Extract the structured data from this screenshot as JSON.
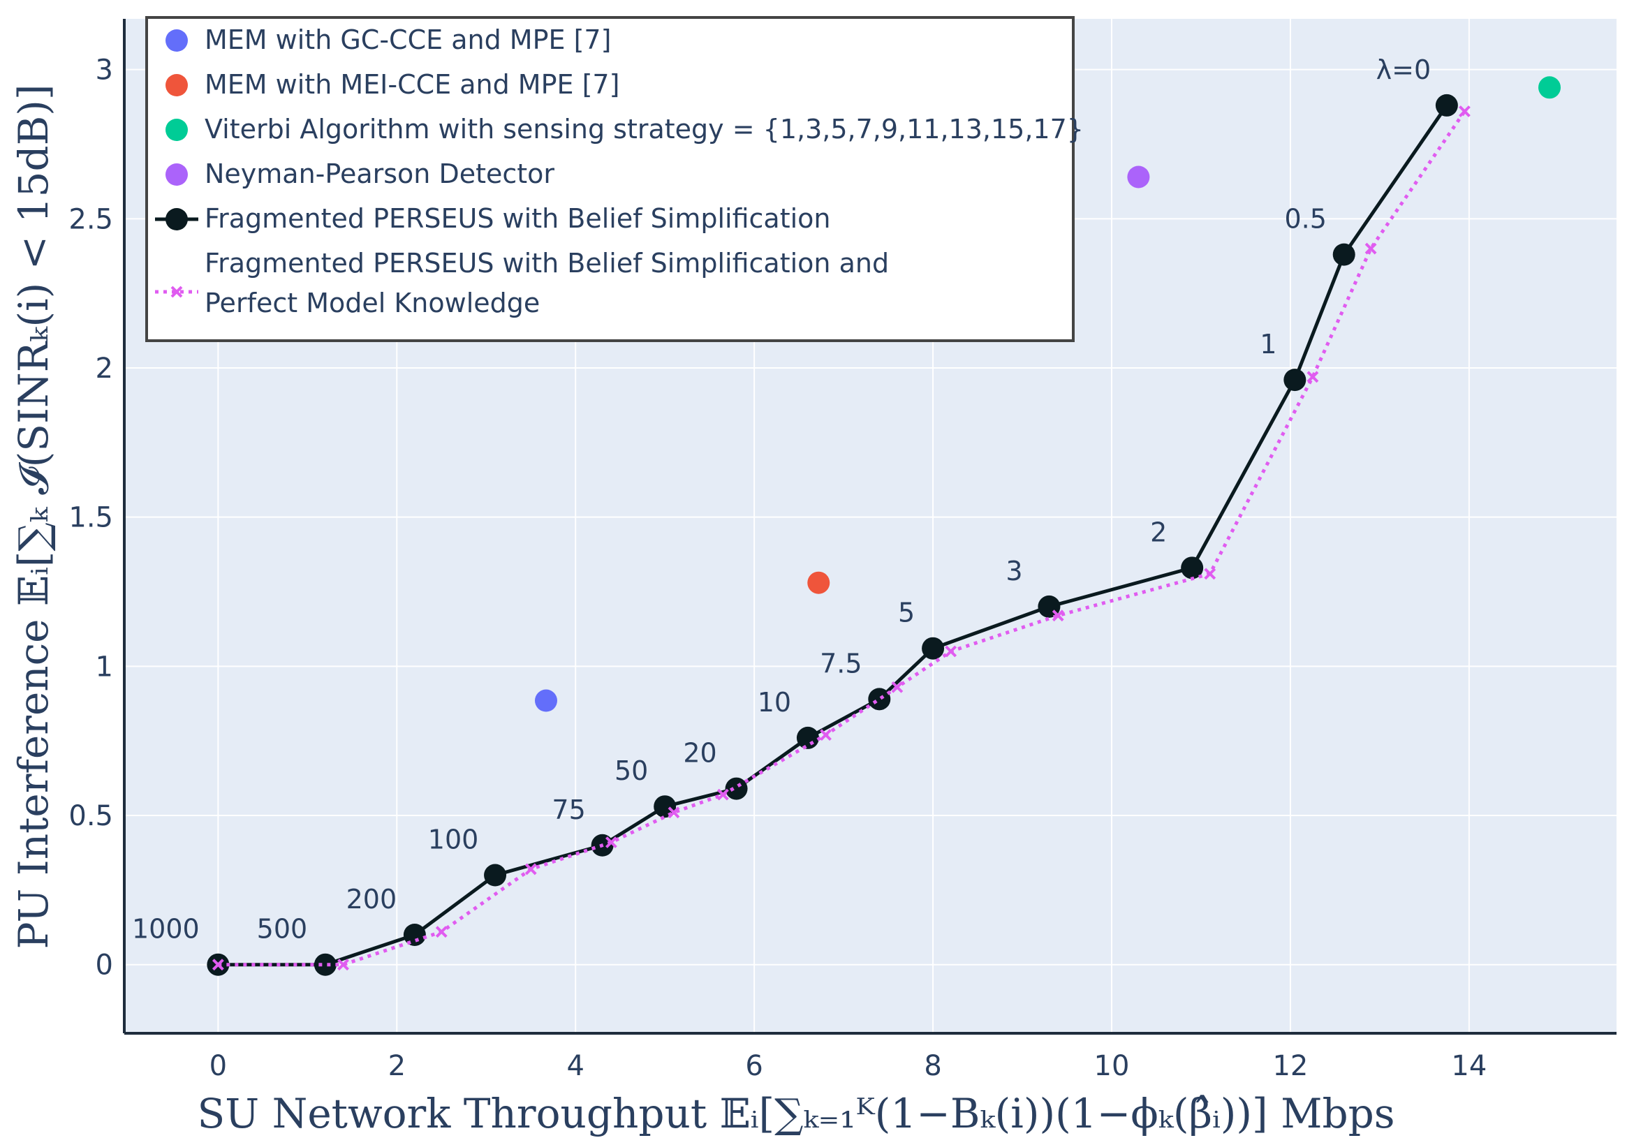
{
  "chart_data": {
    "type": "scatter",
    "xlabel": "SU Network Throughput 𝔼ᵢ[∑ₖ₌₁ᴷ(1−Bₖ(i))(1−ϕₖ(β̂ᵢ))] Mbps",
    "ylabel": "PU Interference 𝔼ᵢ[∑ₖ 𝓘(SINRₖ(i) < 15dB)]",
    "xlim": [
      -1.05,
      15.65
    ],
    "ylim": [
      -0.23,
      3.17
    ],
    "xticks": [
      0,
      2,
      4,
      6,
      8,
      10,
      12,
      14
    ],
    "yticks": [
      0,
      0.5,
      1,
      1.5,
      2,
      2.5,
      3
    ],
    "xtick_labels": [
      "0",
      "2",
      "4",
      "6",
      "8",
      "10",
      "12",
      "14"
    ],
    "ytick_labels": [
      "0",
      "0.5",
      "1",
      "1.5",
      "2",
      "2.5",
      "3"
    ],
    "grid": true,
    "legend_position": "top-left",
    "series": [
      {
        "name": "MEM with GC-CCE and MPE [7]",
        "kind": "marker",
        "color": "#636efa",
        "x": [
          3.67
        ],
        "y": [
          0.885
        ]
      },
      {
        "name": "MEM with MEI-CCE and MPE [7]",
        "kind": "marker",
        "color": "#ef553b",
        "x": [
          6.72
        ],
        "y": [
          1.28
        ]
      },
      {
        "name": "Viterbi Algorithm with sensing strategy = {1,3,5,7,9,11,13,15,17}",
        "kind": "marker",
        "color": "#00cc96",
        "x": [
          14.9
        ],
        "y": [
          2.94
        ]
      },
      {
        "name": "Neyman-Pearson Detector",
        "kind": "marker",
        "color": "#ab63fa",
        "x": [
          10.3
        ],
        "y": [
          2.64
        ]
      },
      {
        "name": "Fragmented PERSEUS with Belief Simplification",
        "kind": "line-marker",
        "color": "#0a1a1f",
        "x": [
          0,
          1.2,
          2.2,
          3.1,
          4.3,
          5.0,
          5.8,
          6.6,
          7.4,
          8.0,
          9.3,
          10.9,
          12.05,
          12.6,
          13.75
        ],
        "y": [
          0,
          0,
          0.1,
          0.3,
          0.4,
          0.53,
          0.59,
          0.76,
          0.89,
          1.06,
          1.2,
          1.33,
          1.96,
          2.38,
          2.88
        ]
      },
      {
        "name": "Fragmented PERSEUS with Belief Simplification and",
        "name_line2": "Perfect Model Knowledge",
        "kind": "dotted-x",
        "color": "#e05cf0",
        "x": [
          0,
          1.4,
          2.5,
          3.5,
          4.4,
          5.1,
          5.65,
          6.8,
          7.6,
          8.2,
          9.4,
          11.1,
          12.25,
          12.9,
          13.95
        ],
        "y": [
          0,
          0,
          0.11,
          0.32,
          0.41,
          0.51,
          0.57,
          0.77,
          0.93,
          1.05,
          1.17,
          1.31,
          1.97,
          2.4,
          2.86
        ]
      }
    ],
    "annotations": [
      {
        "text": "1000",
        "x": 0,
        "y": 0
      },
      {
        "text": "500",
        "x": 1.2,
        "y": 0
      },
      {
        "text": "200",
        "x": 2.2,
        "y": 0.1
      },
      {
        "text": "100",
        "x": 3.1,
        "y": 0.3
      },
      {
        "text": "75",
        "x": 4.3,
        "y": 0.4
      },
      {
        "text": "50",
        "x": 5.0,
        "y": 0.53
      },
      {
        "text": "20",
        "x": 5.8,
        "y": 0.59
      },
      {
        "text": "10",
        "x": 6.6,
        "y": 0.76
      },
      {
        "text": "7.5",
        "x": 7.4,
        "y": 0.89
      },
      {
        "text": "5",
        "x": 8.0,
        "y": 1.06
      },
      {
        "text": "3",
        "x": 9.3,
        "y": 1.2
      },
      {
        "text": "2",
        "x": 10.9,
        "y": 1.33
      },
      {
        "text": "1",
        "x": 12.05,
        "y": 1.96
      },
      {
        "text": "0.5",
        "x": 12.6,
        "y": 2.38
      },
      {
        "text": "λ=0",
        "x": 13.75,
        "y": 2.88
      }
    ]
  }
}
